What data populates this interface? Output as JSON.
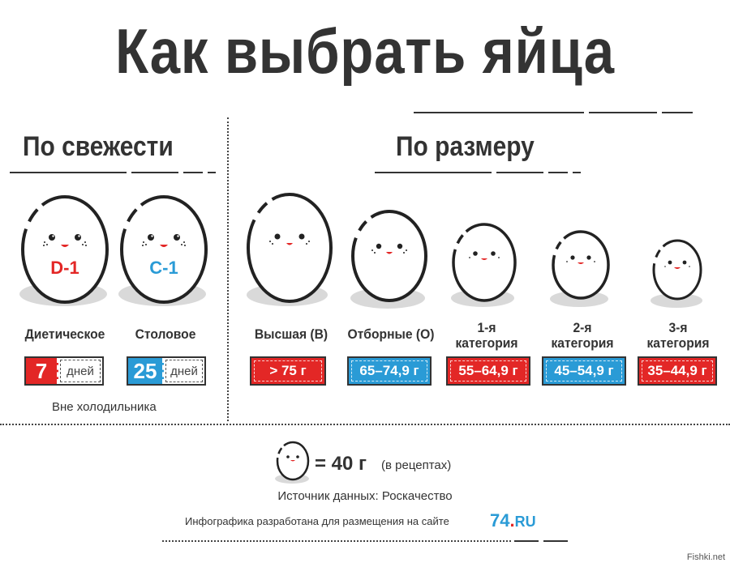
{
  "title": "Как выбрать яйца",
  "freshness": {
    "title": "По свежести",
    "eggs": [
      {
        "code": "D-1",
        "code_color": "#e32726",
        "name": "Диетическое",
        "value": "7",
        "unit": "дней",
        "badge_color": "#e32726"
      },
      {
        "code": "С-1",
        "code_color": "#2a9bd6",
        "name": "Столовое",
        "value": "25",
        "unit": "дней",
        "badge_color": "#2a9bd6"
      }
    ],
    "note": "Вне холодильника"
  },
  "size": {
    "title": "По размеру",
    "categories": [
      {
        "name": "Высшая (В)",
        "range": "> 75 г",
        "color": "#e32726"
      },
      {
        "name": "Отборные (О)",
        "range": "65–74,9 г",
        "color": "#2a9bd6"
      },
      {
        "name_line1": "1-я",
        "name_line2": "категория",
        "range": "55–64,9 г",
        "color": "#e32726"
      },
      {
        "name_line1": "2-я",
        "name_line2": "категория",
        "range": "45–54,9 г",
        "color": "#2a9bd6"
      },
      {
        "name_line1": "3-я",
        "name_line2": "категория",
        "range": "35–44,9 г",
        "color": "#e32726"
      }
    ]
  },
  "footer": {
    "equation": "= 40 г",
    "equation_note": "(в рецептах)",
    "source": "Источник данных: Роскачество",
    "credit": "Инфографика разработана для размещения на сайте",
    "logo_num": "74",
    "logo_dot": ".",
    "logo_ru": "RU",
    "watermark": "Fishki.net"
  },
  "colors": {
    "red": "#e32726",
    "blue": "#2a9bd6",
    "dark": "#333333",
    "shadow": "#d9d9d9"
  },
  "icons": [
    "egg-face-icon",
    "logo-74-icon"
  ]
}
